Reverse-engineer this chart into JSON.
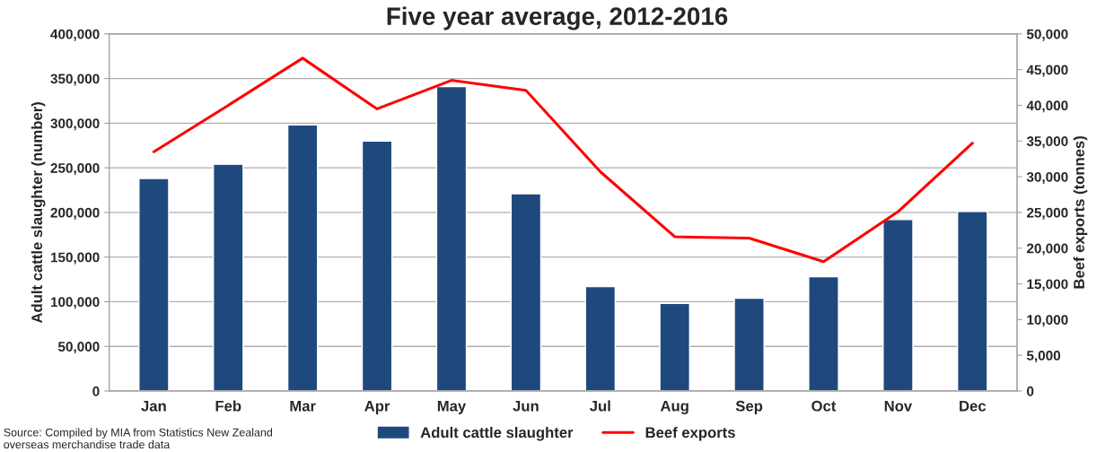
{
  "chart_data": {
    "type": "bar",
    "title": "Five year average, 2012-2016",
    "categories": [
      "Jan",
      "Feb",
      "Mar",
      "Apr",
      "May",
      "Jun",
      "Jul",
      "Aug",
      "Sep",
      "Oct",
      "Nov",
      "Dec"
    ],
    "series": [
      {
        "name": "Adult cattle slaughter",
        "color": "#1f497d",
        "values": [
          238000,
          254000,
          298000,
          280000,
          341000,
          221000,
          117000,
          98000,
          104000,
          128000,
          192000,
          201000
        ]
      },
      {
        "name": "Beef exports",
        "type": "line",
        "axis": "y2",
        "color": "#ff0000",
        "values": [
          33500,
          40000,
          46600,
          39500,
          43500,
          42100,
          30700,
          21600,
          21400,
          18100,
          25100,
          34700
        ]
      }
    ],
    "ylabel": "Adult cattle slaughter (number)",
    "y2label": "Beef exports (tonnes)",
    "ylim": [
      0,
      400000
    ],
    "yticks": [
      {
        "value": 0,
        "label": "0"
      },
      {
        "value": 50000,
        "label": "50,000"
      },
      {
        "value": 100000,
        "label": "100,000"
      },
      {
        "value": 150000,
        "label": "150,000"
      },
      {
        "value": 200000,
        "label": "200,000"
      },
      {
        "value": 250000,
        "label": "250,000"
      },
      {
        "value": 300000,
        "label": "300,000"
      },
      {
        "value": 350000,
        "label": "350,000"
      },
      {
        "value": 400000,
        "label": "400,000"
      }
    ],
    "y2lim": [
      0,
      50000
    ],
    "y2ticks": [
      {
        "value": 0,
        "label": "0"
      },
      {
        "value": 5000,
        "label": "5,000"
      },
      {
        "value": 10000,
        "label": "10,000"
      },
      {
        "value": 15000,
        "label": "15,000"
      },
      {
        "value": 20000,
        "label": "20,000"
      },
      {
        "value": 25000,
        "label": "25,000"
      },
      {
        "value": 30000,
        "label": "30,000"
      },
      {
        "value": 35000,
        "label": "35,000"
      },
      {
        "value": 40000,
        "label": "40,000"
      },
      {
        "value": 45000,
        "label": "45,000"
      },
      {
        "value": 50000,
        "label": "50,000"
      }
    ],
    "grid": "y",
    "legend": "bottom",
    "line_style": "solid",
    "marker": "none",
    "annotations": [
      "Source: Compiled by MIA from Statistics New Zealand\noverseas merchandise trade data"
    ]
  }
}
